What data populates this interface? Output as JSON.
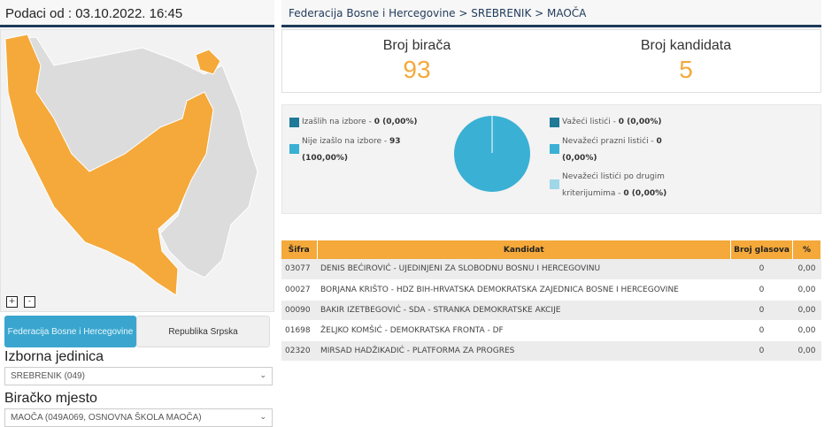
{
  "left": {
    "timestamp": "Podaci od : 03.10.2022. 16:45",
    "zoom_in": "+",
    "zoom_out": "-",
    "entities": [
      "Federacija Bosne i Hercegovine",
      "Republika Srpska"
    ],
    "unit_label": "Izborna jedinica",
    "unit_value": "SREBRENIK (049)",
    "station_label": "Biračko mjesto",
    "station_value": "MAOČA (049A069, OSNOVNA ŠKOLA MAOČA)"
  },
  "colors": {
    "accent": "#f4a93a",
    "active_tab": "#3aa6cf",
    "header_line": "#1f3a5a"
  },
  "breadcrumb": "Federacija Bosne i Hercegovine > SREBRENIK > MAOČA",
  "stats": {
    "voters_label": "Broj birača",
    "voters": "93",
    "candidates_label": "Broj kandidata",
    "candidates": "5"
  },
  "turnout": {
    "left": [
      {
        "label": "Izašlih na izbore - ",
        "value": "0 (0,00%)",
        "color": "#1e7a96"
      },
      {
        "label": "Nije izašlo na izbore - ",
        "value": "93 (100,00%)",
        "color": "#3ab0d4"
      }
    ],
    "right": [
      {
        "label": "Važeći listići - ",
        "value": "0 (0,00%)",
        "color": "#1e7a96"
      },
      {
        "label": "Nevažeći prazni listići - ",
        "value": "0 (0,00%)",
        "color": "#3ab0d4"
      },
      {
        "label": "Nevažeći listići po drugim kriterijumima - ",
        "value": "0 (0,00%)",
        "color": "#9fd6e8"
      }
    ],
    "pie": {
      "turned_out": 0,
      "not_turned_out": 93
    }
  },
  "table": {
    "headers": [
      "Šifra",
      "Kandidat",
      "Broj glasova",
      "%"
    ],
    "rows": [
      [
        "03077",
        "DENIS BEĆIROVIĆ - UJEDINJENI ZA SLOBODNU BOSNU I HERCEGOVINU",
        "0",
        "0,00"
      ],
      [
        "00027",
        "BORJANA KRIŠTO - HDZ BIH-HRVATSKA DEMOKRATSKA ZAJEDNICA BOSNE I HERCEGOVINE",
        "0",
        "0,00"
      ],
      [
        "00090",
        "BAKIR IZETBEGOVIĆ - SDA - STRANKA DEMOKRATSKE AKCIJE",
        "0",
        "0,00"
      ],
      [
        "01698",
        "ŽELJKO KOMŠIĆ - DEMOKRATSKA FRONTA - DF",
        "0",
        "0,00"
      ],
      [
        "02320",
        "MIRSAD HADŽIKADIĆ - PLATFORMA ZA PROGRES",
        "0",
        "0,00"
      ]
    ]
  }
}
